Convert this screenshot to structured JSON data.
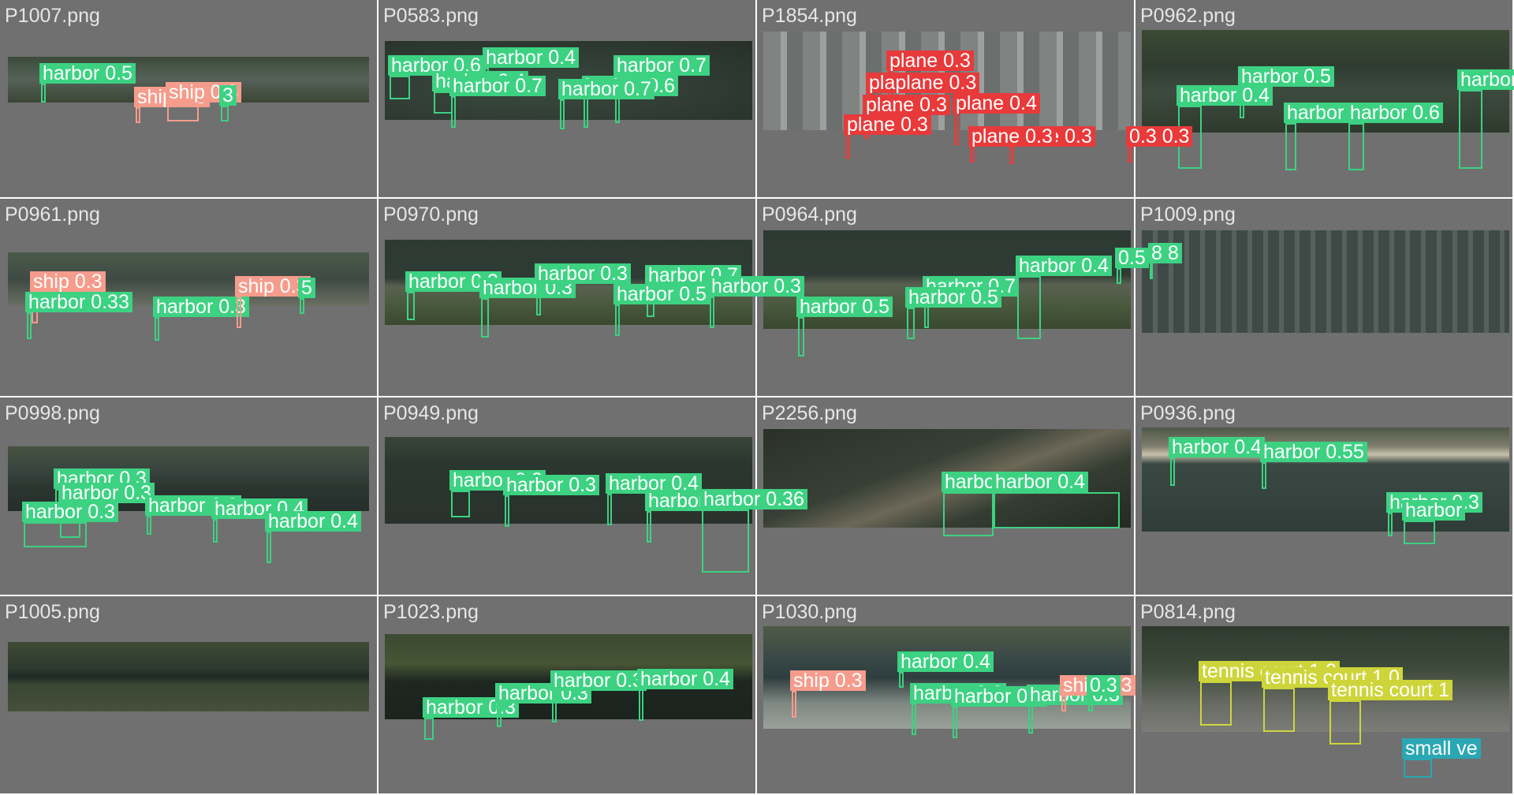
{
  "palette": {
    "background": "#ffffff",
    "cell": "#707070",
    "harbor": "#3cd282",
    "ship": "#f59c8c",
    "plane": "#e83a3a",
    "tennis_court": "#cdd53a",
    "small_vehicle": "#2aa7b3"
  },
  "tiles": [
    {
      "file": "P1007.png",
      "photo": "river",
      "detections": [
        {
          "label": "harbor 0.5",
          "cls": "harbor"
        },
        {
          "label": "ship 0.3",
          "cls": "ship"
        },
        {
          "label": "ship 0.3",
          "cls": "ship"
        },
        {
          "label": "3",
          "cls": "harbor"
        }
      ]
    },
    {
      "file": "P0583.png",
      "photo": "marina",
      "detections": [
        {
          "label": "harbor 0.6",
          "cls": "harbor"
        },
        {
          "label": "harbor 0.4",
          "cls": "harbor"
        },
        {
          "label": "harbor 0.4",
          "cls": "harbor"
        },
        {
          "label": "harbor 0.7",
          "cls": "harbor"
        },
        {
          "label": "harbor 0.6",
          "cls": "harbor"
        },
        {
          "label": "harbor 0.7",
          "cls": "harbor"
        },
        {
          "label": "harbor 0.7",
          "cls": "harbor"
        }
      ]
    },
    {
      "file": "P1854.png",
      "photo": "airport",
      "detections": [
        {
          "label": "plane 0.3",
          "cls": "plane"
        },
        {
          "label": "plaplane 0.3",
          "cls": "plane"
        },
        {
          "label": "plane 0.3",
          "cls": "plane"
        },
        {
          "label": "plane 0.4",
          "cls": "plane"
        },
        {
          "label": "plane 0.3",
          "cls": "plane"
        },
        {
          "label": "plane 0.3",
          "cls": "plane"
        },
        {
          "label": "plane 0.3",
          "cls": "plane"
        },
        {
          "label": "0.3 0.3",
          "cls": "plane"
        }
      ]
    },
    {
      "file": "P0962.png",
      "photo": "forest-marina",
      "detections": [
        {
          "label": "harbor 0.5",
          "cls": "harbor"
        },
        {
          "label": "harbor 0.4",
          "cls": "harbor"
        },
        {
          "label": "harbor 0.4",
          "cls": "harbor"
        },
        {
          "label": "harbor 0.6",
          "cls": "harbor"
        },
        {
          "label": "harbor",
          "cls": "harbor"
        }
      ]
    },
    {
      "file": "P0961.png",
      "photo": "shore",
      "detections": [
        {
          "label": "ship 0.3",
          "cls": "ship"
        },
        {
          "label": "harbor 0.33",
          "cls": "harbor"
        },
        {
          "label": "harbor 0.3",
          "cls": "harbor"
        },
        {
          "label": "ship 0.3",
          "cls": "ship"
        },
        {
          "label": "5",
          "cls": "harbor"
        }
      ]
    },
    {
      "file": "P0970.png",
      "photo": "coast-houses",
      "detections": [
        {
          "label": "harbor 0.3",
          "cls": "harbor"
        },
        {
          "label": "harbor 0.3",
          "cls": "harbor"
        },
        {
          "label": "harbor 0.3",
          "cls": "harbor"
        },
        {
          "label": "harbor 0.7",
          "cls": "harbor"
        },
        {
          "label": "harbor 0.5",
          "cls": "harbor"
        },
        {
          "label": "harbor 0.3",
          "cls": "harbor"
        }
      ]
    },
    {
      "file": "P0964.png",
      "photo": "coast-houses",
      "detections": [
        {
          "label": "harbor 0.7",
          "cls": "harbor"
        },
        {
          "label": "harbor 0.5",
          "cls": "harbor"
        },
        {
          "label": "harbor 0.5",
          "cls": "harbor"
        },
        {
          "label": "harbor 0.4",
          "cls": "harbor"
        },
        {
          "label": "0.5",
          "cls": "harbor"
        },
        {
          "label": "8 8",
          "cls": "harbor"
        }
      ]
    },
    {
      "file": "P1009.png",
      "photo": "grid-marina",
      "detections": []
    },
    {
      "file": "P0998.png",
      "photo": "river-dark",
      "detections": [
        {
          "label": "harbor 0.3",
          "cls": "harbor"
        },
        {
          "label": "harbor 0.3",
          "cls": "harbor"
        },
        {
          "label": "harbor 0.3",
          "cls": "harbor"
        },
        {
          "label": "harbor 0.3",
          "cls": "harbor"
        },
        {
          "label": "harbor 0.4",
          "cls": "harbor"
        },
        {
          "label": "harbor 0.4",
          "cls": "harbor"
        }
      ]
    },
    {
      "file": "P0949.png",
      "photo": "water-dark",
      "detections": [
        {
          "label": "harbor 0.3",
          "cls": "harbor"
        },
        {
          "label": "harbor 0.3",
          "cls": "harbor"
        },
        {
          "label": "harbor 0.4",
          "cls": "harbor"
        },
        {
          "label": "harbor 0.5",
          "cls": "harbor"
        },
        {
          "label": "harbor 0.36",
          "cls": "harbor"
        }
      ]
    },
    {
      "file": "P2256.png",
      "photo": "bridge",
      "detections": [
        {
          "label": "harbor 0.3",
          "cls": "harbor"
        },
        {
          "label": "harbor 0.4",
          "cls": "harbor"
        }
      ]
    },
    {
      "file": "P0936.png",
      "photo": "beach",
      "detections": [
        {
          "label": "harbor 0.4",
          "cls": "harbor"
        },
        {
          "label": "harbor 0.55",
          "cls": "harbor"
        },
        {
          "label": "harbor 0.3",
          "cls": "harbor"
        },
        {
          "label": "harbor",
          "cls": "harbor"
        }
      ]
    },
    {
      "file": "P1005.png",
      "photo": "forest-river",
      "detections": []
    },
    {
      "file": "P1023.png",
      "photo": "river-bank",
      "detections": [
        {
          "label": "harbor 0.3",
          "cls": "harbor"
        },
        {
          "label": "harbor 0.3",
          "cls": "harbor"
        },
        {
          "label": "harbor 0.3",
          "cls": "harbor"
        },
        {
          "label": "harbor 0.4",
          "cls": "harbor"
        }
      ]
    },
    {
      "file": "P1030.png",
      "photo": "lagoon",
      "detections": [
        {
          "label": "harbor 0.4",
          "cls": "harbor"
        },
        {
          "label": "ship 0.3",
          "cls": "ship"
        },
        {
          "label": "harbor 0.3",
          "cls": "harbor"
        },
        {
          "label": "harbor 0.3",
          "cls": "harbor"
        },
        {
          "label": "harbor 0.3",
          "cls": "harbor"
        },
        {
          "label": "ship 0.3",
          "cls": "ship"
        },
        {
          "label": "0.3",
          "cls": "harbor"
        }
      ]
    },
    {
      "file": "P0814.png",
      "photo": "tennis",
      "detections": [
        {
          "label": "tennis court 1.0",
          "cls": "tennis_court"
        },
        {
          "label": "tennis court 1.0",
          "cls": "tennis_court"
        },
        {
          "label": "tennis court 1",
          "cls": "tennis_court"
        },
        {
          "label": "small ve",
          "cls": "small_vehicle"
        }
      ]
    }
  ]
}
